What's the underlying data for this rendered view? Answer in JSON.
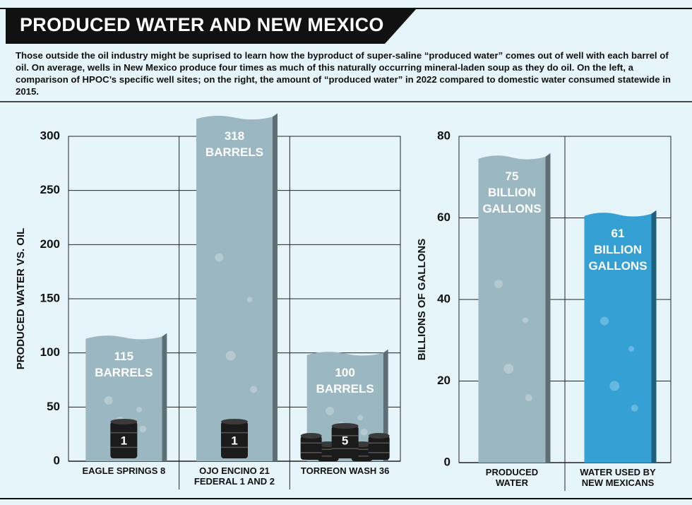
{
  "header": {
    "title": "PRODUCED WATER AND NEW MEXICO",
    "description": "Those outside the oil industry might be suprised to learn how the byproduct of super-saline “produced water” comes out of well with each barrel of oil. On average, wells in New Mexico produce four times as much of this naturally occurring mineral-laden soup as they do oil. On the left, a comparison of HPOC’s specific well sites; on the right, the amount of “produced water”  in 2022 compared to domestic water consumed statewide in 2015."
  },
  "chart_data": [
    {
      "type": "bar",
      "y_label": "PRODUCED WATER VS. OIL",
      "categories": [
        "EAGLE SPRINGS 8",
        "OJO ENCINO 21\nFEDERAL 1 AND 2",
        "TORREON WASH 36"
      ],
      "values": [
        115,
        318,
        100
      ],
      "value_labels": [
        "115\nBARRELS",
        "318\nBARRELS",
        "100\nBARRELS"
      ],
      "oil_values": [
        1,
        1,
        5
      ],
      "color": "#9bb7c1",
      "ylim": [
        0,
        300
      ],
      "yticks": [
        0,
        50,
        100,
        150,
        200,
        250,
        300
      ],
      "grid": true
    },
    {
      "type": "bar",
      "y_label": "BILLIONS OF GALLONS",
      "categories": [
        "PRODUCED\nWATER",
        "WATER USED BY\nNEW MEXICANS"
      ],
      "values": [
        75,
        61
      ],
      "value_labels": [
        "75\nBILLION\nGALLONS",
        "61\nBILLION\nGALLONS"
      ],
      "colors": [
        "#9bb7c1",
        "#35a0d3"
      ],
      "ylim": [
        0,
        80
      ],
      "yticks": [
        0,
        20,
        40,
        60,
        80
      ],
      "grid": true
    }
  ]
}
